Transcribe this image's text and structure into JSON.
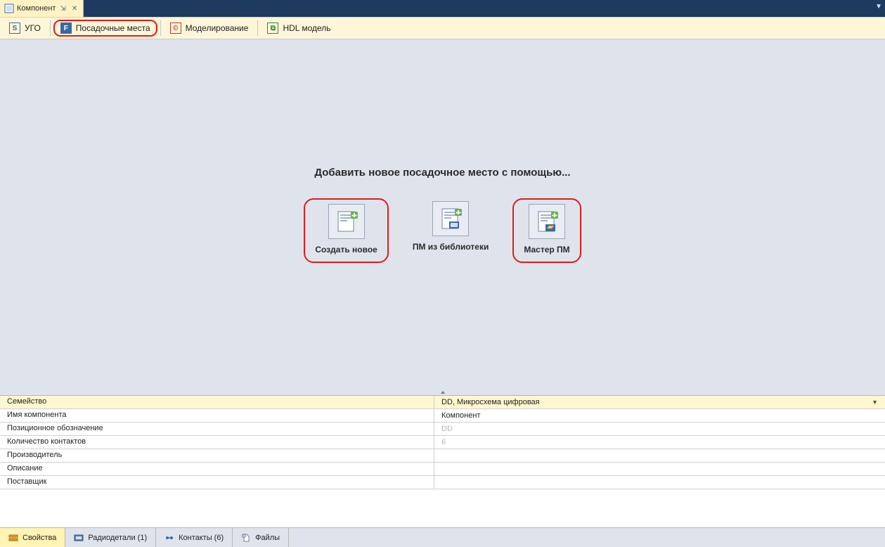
{
  "colors": {
    "titlebar_bg": "#1e3a5f",
    "tab_bg": "#fff3c4",
    "toolbar_bg": "#fdf6d9",
    "canvas_bg": "#dfe4ec",
    "highlight_red": "#e11b1b",
    "prop_selected_bg": "#fff7d0",
    "bottom_active_bg": "#fff3b5"
  },
  "title_tab": {
    "label": "Компонент",
    "icon": "component-icon"
  },
  "toolbar": {
    "items": [
      {
        "label": "УГО",
        "icon_letter": "S",
        "icon_border": "#3a6aa5",
        "icon_color": "#3a6aa5",
        "highlighted": false
      },
      {
        "label": "Посадочные места",
        "icon_letter": "F",
        "icon_border": "#3a6aa5",
        "icon_color": "#ffffff",
        "icon_bg": "#3a6aa5",
        "highlighted": true
      },
      {
        "label": "Моделирование",
        "icon_letter": "©",
        "icon_border": "#d0352a",
        "icon_color": "#d0352a",
        "highlighted": false
      },
      {
        "label": "HDL модель",
        "icon_letter": "⧉",
        "icon_border": "#2e8b3d",
        "icon_color": "#2e8b3d",
        "highlighted": false
      }
    ]
  },
  "main": {
    "heading": "Добавить новое посадочное место с помощью...",
    "buttons": [
      {
        "label": "Создать новое",
        "highlighted": true,
        "icon": "doc-new"
      },
      {
        "label": "ПМ из библиотеки",
        "highlighted": false,
        "icon": "doc-lib"
      },
      {
        "label": "Мастер ПМ",
        "highlighted": true,
        "icon": "doc-wizard"
      }
    ]
  },
  "properties": {
    "rows": [
      {
        "label": "Семейство",
        "value": "DD, Микросхема цифровая",
        "selected": true,
        "dropdown": true
      },
      {
        "label": "Имя компонента",
        "value": "Компонент"
      },
      {
        "label": "Позиционное обозначение",
        "value": "DD",
        "placeholder": true
      },
      {
        "label": "Количество контактов",
        "value": "6",
        "placeholder": true
      },
      {
        "label": "Производитель",
        "value": ""
      },
      {
        "label": "Описание",
        "value": ""
      },
      {
        "label": "Поставщик",
        "value": ""
      }
    ]
  },
  "bottom_tabs": {
    "items": [
      {
        "label": "Свойства",
        "active": true,
        "icon": "props-icon"
      },
      {
        "label": "Радиодетали (1)",
        "active": false,
        "icon": "parts-icon"
      },
      {
        "label": "Контакты (6)",
        "active": false,
        "icon": "contacts-icon"
      },
      {
        "label": "Файлы",
        "active": false,
        "icon": "files-icon"
      }
    ]
  }
}
